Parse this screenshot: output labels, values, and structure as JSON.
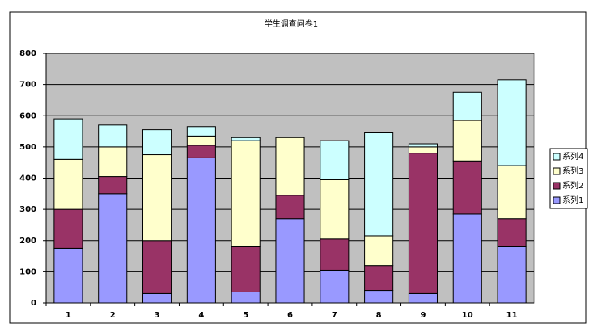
{
  "chart_data": {
    "type": "stacked_bar",
    "title": "学生调查问卷1",
    "categories": [
      "1",
      "2",
      "3",
      "4",
      "5",
      "6",
      "7",
      "8",
      "9",
      "10",
      "11"
    ],
    "series": [
      {
        "name": "系列1",
        "color": "#9999ff",
        "values": [
          175,
          350,
          30,
          465,
          35,
          270,
          105,
          40,
          30,
          285,
          180
        ]
      },
      {
        "name": "系列2",
        "color": "#993366",
        "values": [
          125,
          55,
          170,
          40,
          145,
          75,
          100,
          80,
          450,
          170,
          90
        ]
      },
      {
        "name": "系列3",
        "color": "#ffffcc",
        "values": [
          160,
          95,
          275,
          30,
          340,
          185,
          190,
          95,
          20,
          130,
          170
        ]
      },
      {
        "name": "系列4",
        "color": "#ccffff",
        "values": [
          130,
          70,
          80,
          30,
          10,
          0,
          125,
          330,
          10,
          90,
          275
        ]
      }
    ],
    "ylim": [
      0,
      800
    ],
    "yticks": [
      0,
      100,
      200,
      300,
      400,
      500,
      600,
      700,
      800
    ],
    "grid": true,
    "legend": "right",
    "plot_background": "#c0c0c0"
  }
}
